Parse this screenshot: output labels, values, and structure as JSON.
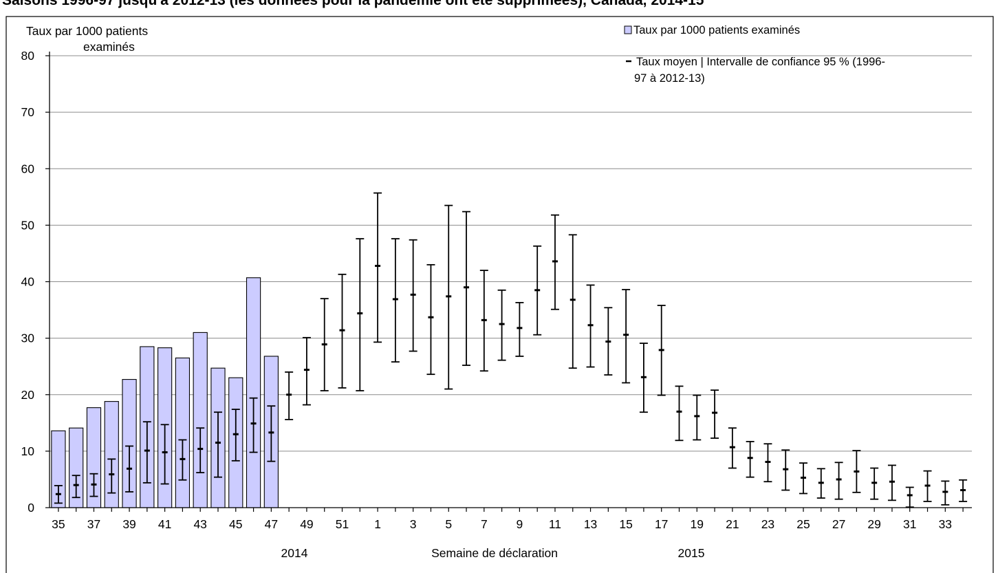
{
  "page_title": "Saisons 1996-97 jusqu'à 2012-13 (les données pour la pandémie ont été supprimées), Canada, 2014-15",
  "chart_data": {
    "type": "bar",
    "title": "Saisons 1996-97 jusqu'à 2012-13 (les données pour la pandémie ont été supprimées), Canada, 2014-15",
    "ylabel_line1": "Taux par 1000  patients",
    "ylabel_line2": "examinés",
    "xlabel": "Semaine de déclaration",
    "year_labels": [
      "2014",
      "2015"
    ],
    "ylim": [
      0,
      80
    ],
    "yticks": [
      "0",
      "10",
      "20",
      "30",
      "40",
      "50",
      "60",
      "70",
      "80"
    ],
    "grid": true,
    "legend_position": "top-right",
    "weeks": [
      "35",
      "36",
      "37",
      "38",
      "39",
      "40",
      "41",
      "42",
      "43",
      "44",
      "45",
      "46",
      "47",
      "48",
      "49",
      "50",
      "51",
      "52",
      "1",
      "2",
      "3",
      "4",
      "5",
      "6",
      "7",
      "8",
      "9",
      "10",
      "11",
      "12",
      "13",
      "14",
      "15",
      "16",
      "17",
      "18",
      "19",
      "20",
      "21",
      "22",
      "23",
      "24",
      "25",
      "26",
      "27",
      "28",
      "29",
      "30",
      "31",
      "32",
      "33",
      "34"
    ],
    "series": [
      {
        "name": "Taux par 1000 patients examinés",
        "kind": "bar",
        "color": "#ccccff",
        "values": [
          13.6,
          14.1,
          17.7,
          18.8,
          22.7,
          28.5,
          28.3,
          26.5,
          31.0,
          24.7,
          23.0,
          40.7,
          26.8
        ]
      },
      {
        "name": "Taux moyen | Intervalle de confiance 95 % (1996-97 à 2012-13)",
        "kind": "errorbar",
        "color": "#000000",
        "mean": [
          2.4,
          4.0,
          4.1,
          5.9,
          6.9,
          10.1,
          9.8,
          8.6,
          10.4,
          11.5,
          13.0,
          14.9,
          13.3,
          20.0,
          24.4,
          28.9,
          31.4,
          34.4,
          42.8,
          36.9,
          37.7,
          33.7,
          37.4,
          39.0,
          33.2,
          32.5,
          31.8,
          38.5,
          43.6,
          36.8,
          32.3,
          29.4,
          30.6,
          23.1,
          27.9,
          17.0,
          16.2,
          16.8,
          10.7,
          8.8,
          8.1,
          6.8,
          5.3,
          4.4,
          5.0,
          6.4,
          4.4,
          4.6,
          2.2,
          3.9,
          2.8,
          3.1
        ],
        "lower": [
          0.8,
          1.8,
          2.0,
          2.6,
          2.8,
          4.4,
          4.2,
          4.9,
          6.2,
          5.4,
          8.3,
          9.8,
          8.2,
          15.6,
          18.2,
          20.7,
          21.2,
          20.7,
          29.3,
          25.8,
          27.7,
          23.6,
          21.0,
          25.2,
          24.2,
          26.1,
          26.8,
          30.6,
          35.1,
          24.7,
          24.9,
          23.5,
          22.1,
          16.9,
          19.9,
          11.9,
          12.0,
          12.3,
          7.0,
          5.4,
          4.6,
          3.1,
          2.5,
          1.7,
          1.5,
          2.7,
          1.5,
          1.3,
          0.1,
          1.1,
          0.5,
          1.1
        ],
        "upper": [
          3.9,
          5.7,
          6.0,
          8.6,
          10.9,
          15.2,
          14.7,
          12.0,
          14.1,
          16.9,
          17.4,
          19.4,
          18.0,
          24.0,
          30.1,
          37.0,
          41.3,
          47.6,
          55.7,
          47.6,
          47.4,
          43.0,
          53.5,
          52.4,
          42.0,
          38.5,
          36.3,
          46.3,
          51.8,
          48.3,
          39.4,
          35.4,
          38.6,
          29.1,
          35.8,
          21.5,
          19.9,
          20.8,
          14.1,
          11.7,
          11.3,
          10.2,
          7.9,
          6.9,
          8.0,
          10.1,
          7.0,
          7.5,
          3.6,
          6.5,
          4.7,
          4.9
        ]
      }
    ]
  }
}
